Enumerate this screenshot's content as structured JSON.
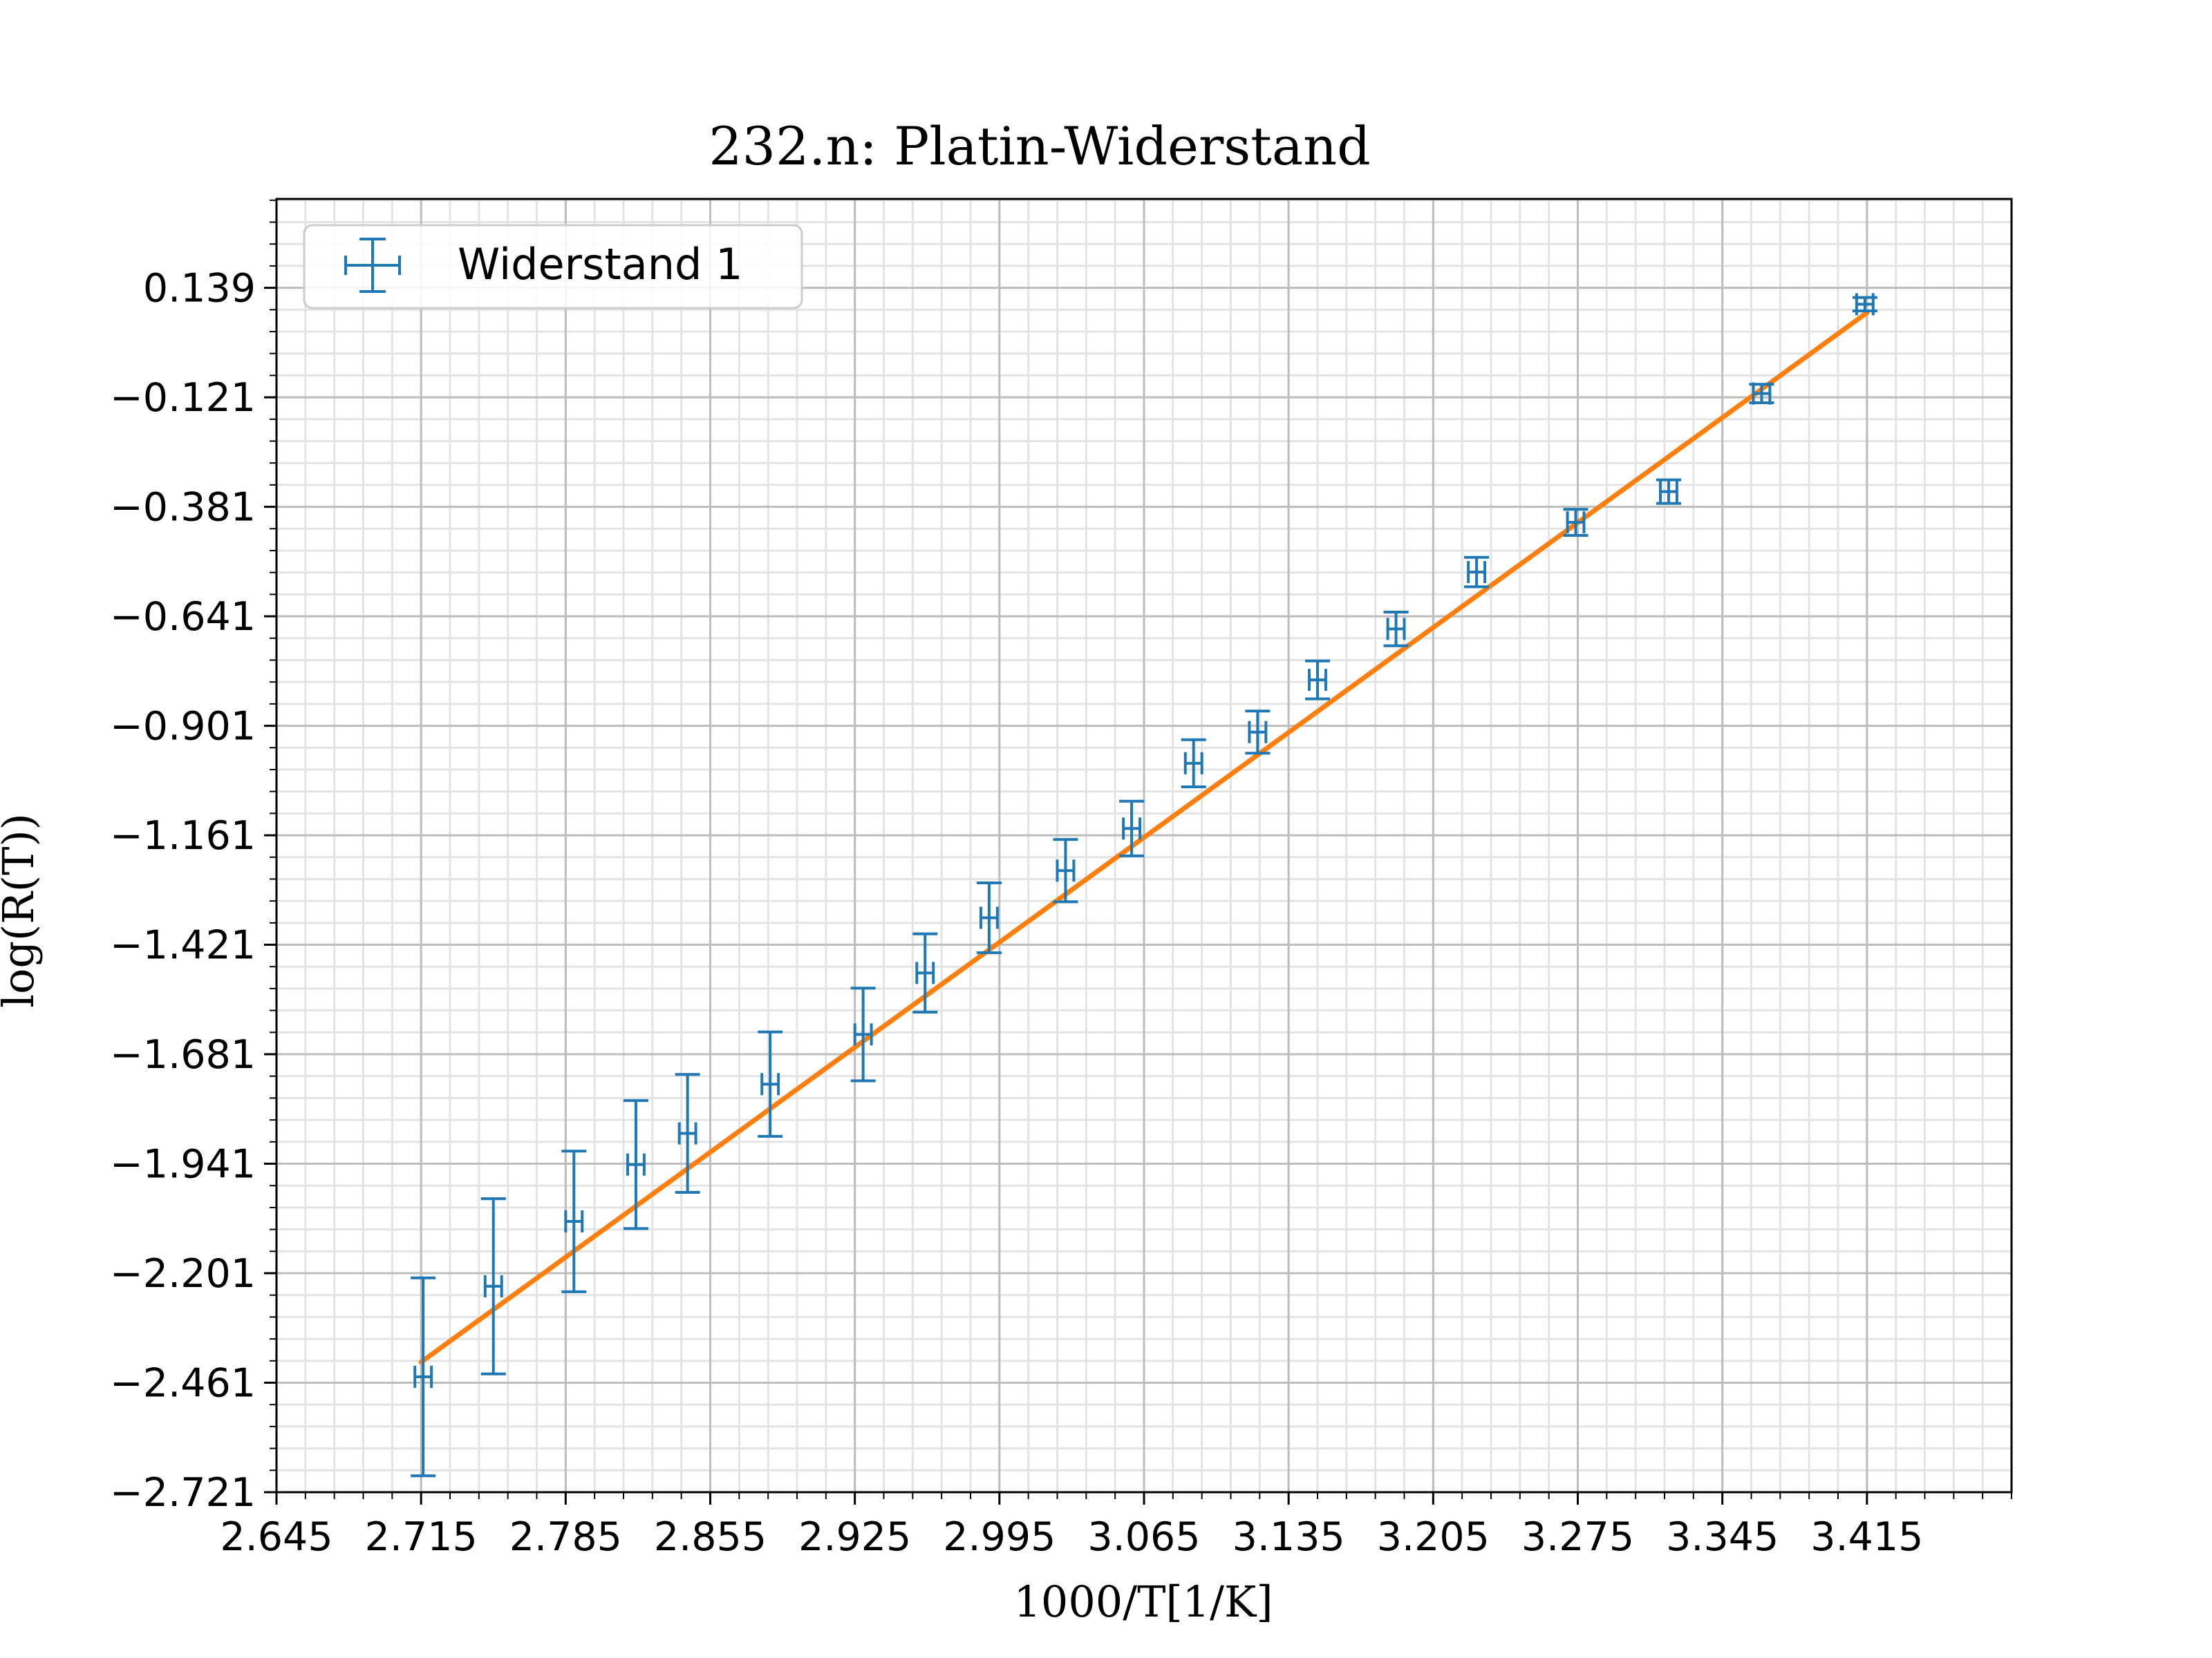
{
  "chart_data": {
    "type": "scatter",
    "title": "232.n: Platin-Widerstand",
    "xlabel": "1000/T[1/K]",
    "ylabel": "log(R(T))",
    "xlim": [
      2.645,
      3.485
    ],
    "ylim": [
      -2.721,
      0.35
    ],
    "xticks": [
      "2.645",
      "2.715",
      "2.785",
      "2.855",
      "2.925",
      "2.995",
      "3.065",
      "3.135",
      "3.205",
      "3.275",
      "3.345",
      "3.415"
    ],
    "xtick_values": [
      2.645,
      2.715,
      2.785,
      2.855,
      2.925,
      2.995,
      3.065,
      3.135,
      3.205,
      3.275,
      3.345,
      3.415
    ],
    "yticks": [
      "0.139",
      "−0.121",
      "−0.381",
      "−0.641",
      "−0.901",
      "−1.161",
      "−1.421",
      "−1.681",
      "−1.941",
      "−2.201",
      "−2.461",
      "−2.721"
    ],
    "ytick_values": [
      0.139,
      -0.121,
      -0.381,
      -0.641,
      -0.901,
      -1.161,
      -1.421,
      -1.681,
      -1.941,
      -2.201,
      -2.461,
      -2.721
    ],
    "grid": true,
    "minor_grid": true,
    "legend_position": "top-left",
    "series": [
      {
        "name": "Widerstand 1",
        "kind": "errorbar",
        "color": "#1f77b4",
        "points": [
          {
            "x": 2.716,
            "y": -2.447,
            "yerr": 0.235,
            "xerr": 0.004
          },
          {
            "x": 2.75,
            "y": -2.232,
            "yerr": 0.208,
            "xerr": 0.004
          },
          {
            "x": 2.789,
            "y": -2.078,
            "yerr": 0.167,
            "xerr": 0.004
          },
          {
            "x": 2.819,
            "y": -1.943,
            "yerr": 0.152,
            "xerr": 0.004
          },
          {
            "x": 2.844,
            "y": -1.869,
            "yerr": 0.14,
            "xerr": 0.004
          },
          {
            "x": 2.884,
            "y": -1.752,
            "yerr": 0.124,
            "xerr": 0.004
          },
          {
            "x": 2.929,
            "y": -1.634,
            "yerr": 0.11,
            "xerr": 0.004
          },
          {
            "x": 2.959,
            "y": -1.488,
            "yerr": 0.093,
            "xerr": 0.004
          },
          {
            "x": 2.99,
            "y": -1.357,
            "yerr": 0.083,
            "xerr": 0.004
          },
          {
            "x": 3.027,
            "y": -1.245,
            "yerr": 0.074,
            "xerr": 0.004
          },
          {
            "x": 3.059,
            "y": -1.145,
            "yerr": 0.065,
            "xerr": 0.004
          },
          {
            "x": 3.089,
            "y": -0.99,
            "yerr": 0.056,
            "xerr": 0.004
          },
          {
            "x": 3.12,
            "y": -0.916,
            "yerr": 0.05,
            "xerr": 0.004
          },
          {
            "x": 3.149,
            "y": -0.792,
            "yerr": 0.045,
            "xerr": 0.004
          },
          {
            "x": 3.187,
            "y": -0.671,
            "yerr": 0.04,
            "xerr": 0.004
          },
          {
            "x": 3.226,
            "y": -0.536,
            "yerr": 0.035,
            "xerr": 0.004
          },
          {
            "x": 3.274,
            "y": -0.418,
            "yerr": 0.031,
            "xerr": 0.004
          },
          {
            "x": 3.319,
            "y": -0.345,
            "yerr": 0.028,
            "xerr": 0.004
          },
          {
            "x": 3.364,
            "y": -0.112,
            "yerr": 0.022,
            "xerr": 0.004
          },
          {
            "x": 3.414,
            "y": 0.1,
            "yerr": 0.016,
            "xerr": 0.004
          }
        ]
      },
      {
        "kind": "fit-line",
        "color": "#ff7f0e",
        "x": [
          2.715,
          3.415
        ],
        "y": [
          -2.412,
          0.08
        ]
      }
    ]
  }
}
